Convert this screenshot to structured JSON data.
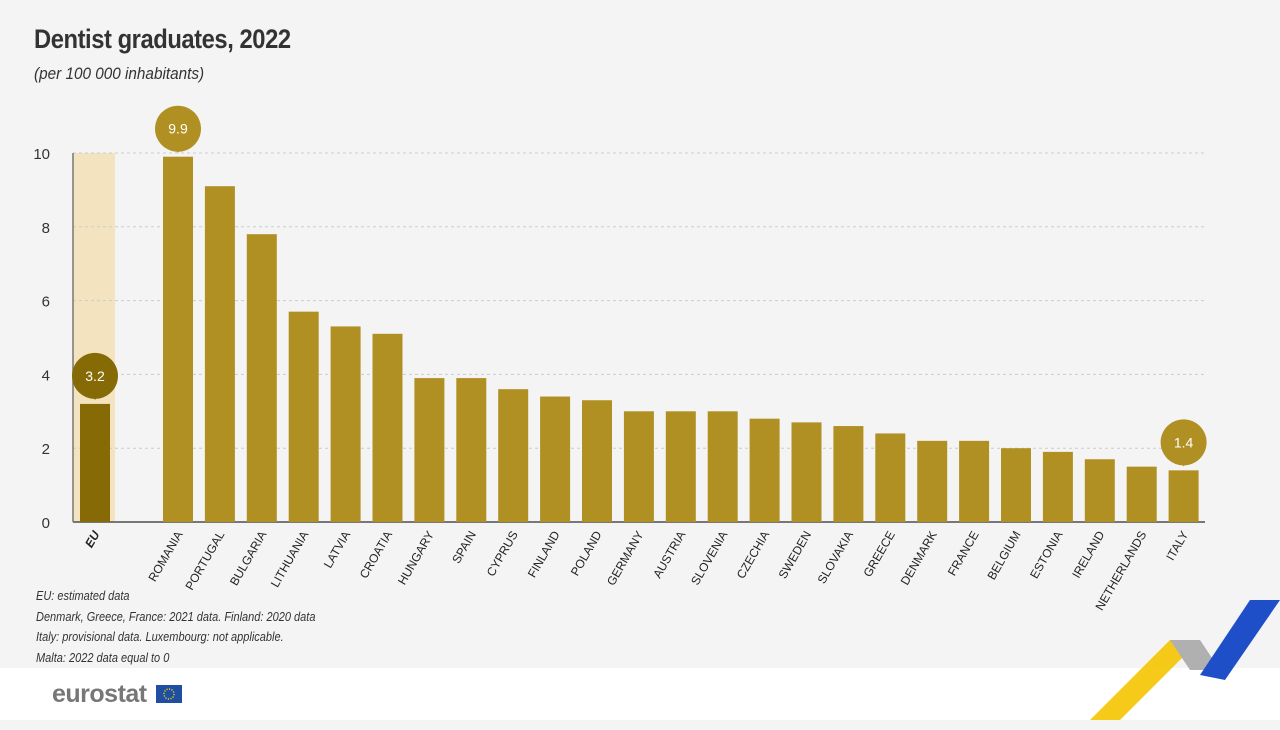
{
  "chart_data": {
    "type": "bar",
    "title": "Dentist graduates, 2022",
    "subtitle": "(per 100 000 inhabitants)",
    "categories": [
      "EU",
      "ROMANIA",
      "PORTUGAL",
      "BULGARIA",
      "LITHUANIA",
      "LATVIA",
      "CROATIA",
      "HUNGARY",
      "SPAIN",
      "CYPRUS",
      "FINLAND",
      "POLAND",
      "GERMANY",
      "AUSTRIA",
      "SLOVENIA",
      "CZECHIA",
      "SWEDEN",
      "SLOVAKIA",
      "GREECE",
      "DENMARK",
      "FRANCE",
      "BELGIUM",
      "ESTONIA",
      "IRELAND",
      "NETHERLANDS",
      "ITALY"
    ],
    "values": [
      3.2,
      9.9,
      9.1,
      7.8,
      5.7,
      5.3,
      5.1,
      3.9,
      3.9,
      3.6,
      3.4,
      3.3,
      3.0,
      3.0,
      3.0,
      2.8,
      2.7,
      2.6,
      2.4,
      2.2,
      2.2,
      2.0,
      1.9,
      1.7,
      1.5,
      1.4
    ],
    "data_labels": {
      "EU": "3.2",
      "ROMANIA": "9.9",
      "ITALY": "1.4"
    },
    "ylim": [
      0,
      10
    ],
    "yticks": [
      "0",
      "2",
      "4",
      "6",
      "8",
      "10"
    ],
    "grid": true,
    "colors": {
      "bar": "#b09022",
      "eu_bar": "#866a06",
      "eu_highlight": "#f3e3bf",
      "axis": "#777777"
    }
  },
  "notes": [
    "EU: estimated data",
    "Denmark, Greece, France: 2021 data. Finland: 2020 data",
    "Italy: provisional data. Luxembourg: not applicable.",
    "Malta: 2022 data equal to 0"
  ],
  "footer": {
    "logo_text": "eurostat"
  }
}
